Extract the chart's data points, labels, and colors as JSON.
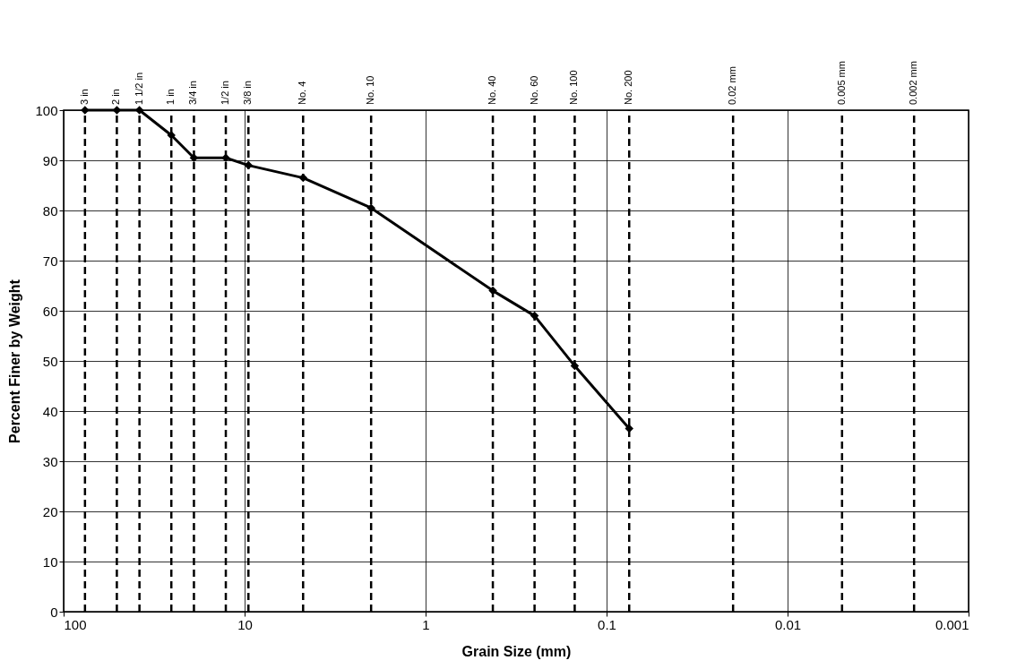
{
  "chart_data": {
    "type": "line",
    "xlabel": "Grain Size (mm)",
    "ylabel": "Percent Finer by Weight",
    "x": [
      76.2,
      50.8,
      38.1,
      25.4,
      19.05,
      12.7,
      9.525,
      4.75,
      2.0,
      0.425,
      0.25,
      0.15,
      0.075
    ],
    "series": [
      {
        "color": "#000000",
        "values": [
          100,
          100,
          100,
          95,
          90.5,
          90.5,
          89,
          86.5,
          80.5,
          64,
          59,
          49,
          36.5
        ]
      }
    ],
    "log": "x",
    "xlim": [
      100,
      0.001
    ],
    "xticks": [
      100,
      10,
      1,
      0.1,
      0.01,
      0.001
    ],
    "ylim": [
      0,
      100
    ],
    "yticks": [
      0,
      10,
      20,
      30,
      40,
      50,
      60,
      70,
      80,
      90,
      100
    ],
    "grid": true,
    "marker": "diamond",
    "line_style": "solid",
    "ref_lines": [
      {
        "axis": "x",
        "value": 76.2,
        "label": "3 in",
        "line_style": "dashed"
      },
      {
        "axis": "x",
        "value": 50.8,
        "label": "2 in",
        "line_style": "dashed"
      },
      {
        "axis": "x",
        "value": 38.1,
        "label": "1 1/2 in",
        "line_style": "dashed"
      },
      {
        "axis": "x",
        "value": 25.4,
        "label": "1 in",
        "line_style": "dashed"
      },
      {
        "axis": "x",
        "value": 19.05,
        "label": "3/4 in",
        "line_style": "dashed"
      },
      {
        "axis": "x",
        "value": 12.7,
        "label": "1/2 in",
        "line_style": "dashed"
      },
      {
        "axis": "x",
        "value": 9.525,
        "label": "3/8 in",
        "line_style": "dashed"
      },
      {
        "axis": "x",
        "value": 4.75,
        "label": "No. 4",
        "line_style": "dashed"
      },
      {
        "axis": "x",
        "value": 2.0,
        "label": "No. 10",
        "line_style": "dashed"
      },
      {
        "axis": "x",
        "value": 0.425,
        "label": "No. 40",
        "line_style": "dashed"
      },
      {
        "axis": "x",
        "value": 0.25,
        "label": "No. 60",
        "line_style": "dashed"
      },
      {
        "axis": "x",
        "value": 0.15,
        "label": "No. 100",
        "line_style": "dashed"
      },
      {
        "axis": "x",
        "value": 0.075,
        "label": "No. 200",
        "line_style": "dashed"
      },
      {
        "axis": "x",
        "value": 0.02,
        "label": "0.02 mm",
        "line_style": "dashed"
      },
      {
        "axis": "x",
        "value": 0.005,
        "label": "0.005 mm",
        "line_style": "dashed"
      },
      {
        "axis": "x",
        "value": 0.002,
        "label": "0.002 mm",
        "line_style": "dashed"
      }
    ]
  }
}
